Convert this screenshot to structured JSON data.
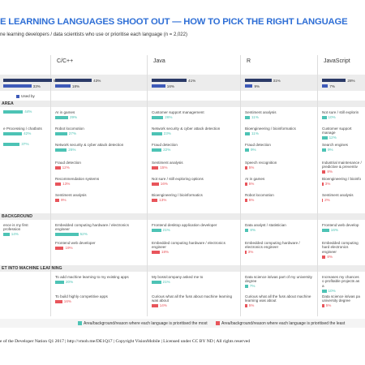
{
  "title": "E LEARNING LANGUAGES SHOOT OUT —  HOW TO PICK THE RIGHT LANGUAGE",
  "subtitle": "ne learning developers / data scientists who use or prioritise each language (n = 2,022)",
  "legend": {
    "label": "Used by",
    "color": "#3e5ab8"
  },
  "sections": [
    "AREA",
    "BACKGROUND",
    "ET INTO MACHINE LEARNING"
  ],
  "columns": [
    {
      "usage": [
        {
          "value": 57,
          "value_label": "57%",
          "color": "#2b3a67"
        },
        {
          "value": 33,
          "value_label": "33%",
          "color": "#3e5ab8"
        }
      ],
      "groups": [
        [
          {
            "value": 44,
            "value_label": "44%",
            "color": "#4dc3b5"
          },
          {
            "label": "e Processing / chatbots",
            "value": 42,
            "value_label": "42%",
            "color": "#4dc3b5"
          },
          {
            "value": 37,
            "value_label": "37%",
            "color": "#4dc3b5"
          }
        ],
        [
          {
            "label": "ence is my first profession",
            "value": 14,
            "value_label": "14%",
            "color": "#4dc3b5"
          }
        ],
        []
      ]
    },
    {
      "name": "C/C++",
      "usage": [
        {
          "value": 43,
          "value_label": "43%",
          "color": "#2b3a67"
        },
        {
          "value": 18,
          "value_label": "18%",
          "color": "#3e5ab8"
        }
      ],
      "groups": [
        [
          {
            "label": "AI in games",
            "value": 29,
            "value_label": "29%",
            "color": "#4dc3b5"
          },
          {
            "label": "Robot locomotion",
            "value": 27,
            "value_label": "27%",
            "color": "#4dc3b5"
          },
          {
            "label": "Network security & cyber attack detection",
            "value": 26,
            "value_label": "26%",
            "color": "#4dc3b5"
          },
          {
            "label": "Fraud detection",
            "value": 12,
            "value_label": "12%",
            "color": "#e8555b"
          },
          {
            "label": "Recommendation systems",
            "value": 13,
            "value_label": "13%",
            "color": "#e8555b"
          },
          {
            "label": "Sentiment analysis",
            "value": 9,
            "value_label": "9%",
            "color": "#e8555b"
          }
        ],
        [
          {
            "label": "Embedded computing hardware / electronics engineer",
            "value": 52,
            "value_label": "52%",
            "color": "#4dc3b5"
          },
          {
            "label": "Frontend web developer",
            "value": 19,
            "value_label": "19%",
            "color": "#e8555b"
          }
        ],
        [
          {
            "label": "To add machine learning to my existing apps",
            "value": 20,
            "value_label": "20%",
            "color": "#4dc3b5"
          },
          {
            "label": "To build highly competitive apps",
            "value": 16,
            "value_label": "16%",
            "color": "#e8555b"
          }
        ]
      ]
    },
    {
      "name": "Java",
      "usage": [
        {
          "value": 41,
          "value_label": "41%",
          "color": "#2b3a67"
        },
        {
          "value": 16,
          "value_label": "16%",
          "color": "#3e5ab8"
        }
      ],
      "groups": [
        [
          {
            "label": "Customer support management",
            "value": 26,
            "value_label": "26%",
            "color": "#4dc3b5"
          },
          {
            "label": "Network security & cyber attack detection",
            "value": 23,
            "value_label": "23%",
            "color": "#4dc3b5"
          },
          {
            "label": "Fraud detection",
            "value": 22,
            "value_label": "22%",
            "color": "#4dc3b5"
          },
          {
            "label": "Sentiment analysis",
            "value": 15,
            "value_label": "15%",
            "color": "#e8555b"
          },
          {
            "label": "Not sure / still exploring options",
            "value": 16,
            "value_label": "16%",
            "color": "#e8555b"
          },
          {
            "label": "Bioengineering / bioinformatics",
            "value": 13,
            "value_label": "13%",
            "color": "#e8555b"
          }
        ],
        [
          {
            "label": "Frontend desktop application developer",
            "value": 21,
            "value_label": "21%",
            "color": "#4dc3b5"
          },
          {
            "label": "Embedded computing hardware / electronics engineer",
            "value": 18,
            "value_label": "18%",
            "color": "#e8555b"
          }
        ],
        [
          {
            "label": "My boss/company asked me to",
            "value": 21,
            "value_label": "21%",
            "color": "#4dc3b5"
          },
          {
            "label": "Curious what all the fuss about machine learning was about",
            "value": 14,
            "value_label": "14%",
            "color": "#e8555b"
          }
        ]
      ]
    },
    {
      "name": "R",
      "usage": [
        {
          "value": 31,
          "value_label": "31%",
          "color": "#2b3a67"
        },
        {
          "value": 9,
          "value_label": "9%",
          "color": "#3e5ab8"
        }
      ],
      "groups": [
        [
          {
            "label": "Sentiment analysis",
            "value": 11,
            "value_label": "11%",
            "color": "#4dc3b5"
          },
          {
            "label": "Bioengineering / bioinformatics",
            "value": 11,
            "value_label": "11%",
            "color": "#4dc3b5"
          },
          {
            "label": "Fraud detection",
            "value": 9,
            "value_label": "9%",
            "color": "#4dc3b5"
          },
          {
            "label": "Speech recognition",
            "value": 5,
            "value_label": "5%",
            "color": "#e8555b"
          },
          {
            "label": "AI in games",
            "value": 5,
            "value_label": "5%",
            "color": "#e8555b"
          },
          {
            "label": "Robot locomotion",
            "value": 5,
            "value_label": "5%",
            "color": "#e8555b"
          }
        ],
        [
          {
            "label": "Data analyst / statistician",
            "value": 8,
            "value_label": "8%",
            "color": "#4dc3b5"
          },
          {
            "label": "Embedded computing hardware / electronics engineer",
            "value": 3,
            "value_label": "3%",
            "color": "#e8555b"
          }
        ],
        [
          {
            "label": "Data science is/was part of my university degree",
            "value": 7,
            "value_label": "7%",
            "color": "#4dc3b5"
          },
          {
            "label": "Curious what all the fuss about machine learning was about",
            "value": 5,
            "value_label": "5%",
            "color": "#e8555b"
          }
        ]
      ]
    },
    {
      "name": "JavaScript",
      "usage": [
        {
          "value": 28,
          "value_label": "28%",
          "color": "#2b3a67"
        },
        {
          "value": 7,
          "value_label": "7%",
          "color": "#3e5ab8"
        }
      ],
      "groups": [
        [
          {
            "label": "Not sure / still explorin",
            "value": 10,
            "value_label": "10%",
            "color": "#4dc3b5"
          },
          {
            "label": "Customer support manage",
            "value": 12,
            "value_label": "12%",
            "color": "#4dc3b5"
          },
          {
            "label": "Search engines",
            "value": 9,
            "value_label": "9%",
            "color": "#4dc3b5"
          },
          {
            "label": "Industrial maintenance / predictive & preventiv",
            "value": 8,
            "value_label": "8%",
            "color": "#e8555b"
          },
          {
            "label": "Bioengineering / bioinfo",
            "value": 3,
            "value_label": "3%",
            "color": "#e8555b"
          },
          {
            "label": "Sentiment analysis",
            "value": 2,
            "value_label": "2%",
            "color": "#e8555b"
          }
        ],
        [
          {
            "label": "Frontend web develop",
            "value": 16,
            "value_label": "16%",
            "color": "#4dc3b5"
          },
          {
            "label": "Embedded computing hard electronics engineer",
            "value": 8,
            "value_label": "8%",
            "color": "#e8555b"
          }
        ],
        [
          {
            "label": "Increases my chances o profitable projects as a",
            "value": 10,
            "value_label": "10%",
            "color": "#4dc3b5"
          },
          {
            "label": "Data science is/was pa university degree",
            "value": 5,
            "value_label": "5%",
            "color": "#e8555b"
          }
        ]
      ]
    }
  ],
  "footer_legend": [
    {
      "label": "Area/background/reason where each language is prioritised the most",
      "color": "#4dc3b5"
    },
    {
      "label": "Area/background/reason where each language is prioritised the least",
      "color": "#e8555b"
    }
  ],
  "credit": "e of the Developer Nation Q1 2017  |  http://vmob.me/DE1Q17  |  Copyright VisionMobile  |  Licensed under CC BY ND  |  All rights reserved"
}
